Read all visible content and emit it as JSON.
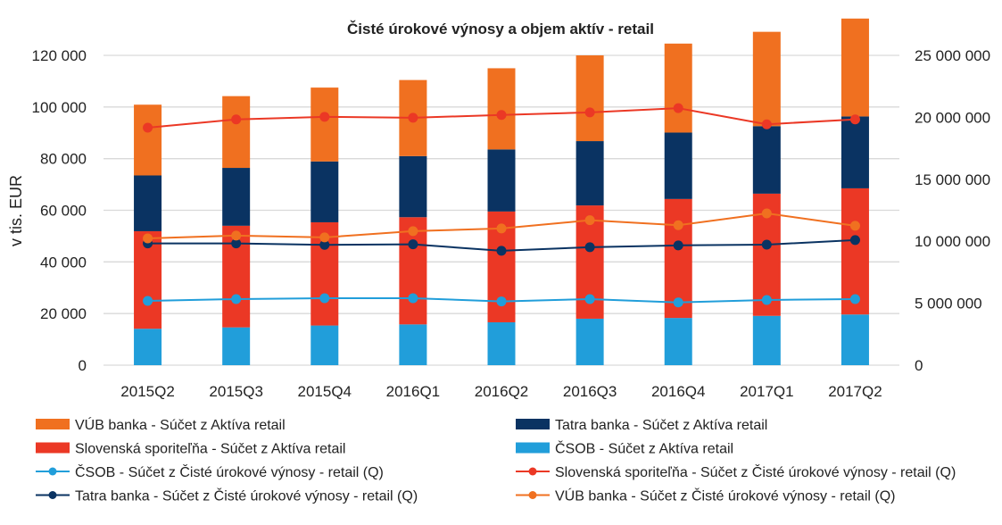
{
  "chart_data": {
    "type": "bar",
    "title": "Čisté úrokové výnosy a objem aktív - retail",
    "ylabel": "v tis. EUR",
    "xlabel": "",
    "categories": [
      "2015Q2",
      "2015Q3",
      "2015Q4",
      "2016Q1",
      "2016Q2",
      "2016Q3",
      "2016Q4",
      "2017Q1",
      "2017Q2"
    ],
    "y_left": {
      "min": 0,
      "max": 120000,
      "step": 20000,
      "ticks": [
        "0",
        "20 000",
        "40 000",
        "60 000",
        "80 000",
        "100 000",
        "120 000"
      ]
    },
    "y_right": {
      "min": 0,
      "max": 25000000,
      "step": 5000000,
      "ticks": [
        "0",
        "5 000 000",
        "10 000 000",
        "15 000 000",
        "20 000 000",
        "25 000 000"
      ]
    },
    "grid": true,
    "legend_position": "bottom",
    "bar_series": [
      {
        "name": "ČSOB - Súčet z Aktíva retail",
        "color": "#219EDA",
        "axis": "right",
        "values": [
          2940000,
          3050000,
          3200000,
          3290000,
          3460000,
          3750000,
          3810000,
          3980000,
          4090000
        ]
      },
      {
        "name": "Slovenská sporiteľňa - Súčet z Aktíva retail",
        "color": "#EB3825",
        "axis": "right",
        "values": [
          7870000,
          8200000,
          8330000,
          8650000,
          8940000,
          9140000,
          9600000,
          9860000,
          10180000
        ]
      },
      {
        "name": "Tatra banka - Súčet z Aktíva retail",
        "color": "#0A3362",
        "axis": "right",
        "values": [
          4500000,
          4670000,
          4910000,
          4930000,
          5010000,
          5190000,
          5360000,
          5450000,
          5800000
        ]
      },
      {
        "name": "VÚB banka - Súčet z Aktíva retail",
        "color": "#F07020",
        "axis": "right",
        "values": [
          5710000,
          5790000,
          5960000,
          6140000,
          6550000,
          6920000,
          7180000,
          7610000,
          7900000
        ]
      }
    ],
    "line_series": [
      {
        "name": "ČSOB - Súčet z Čisté úrokové výnosy - retail (Q)",
        "color": "#219EDA",
        "axis": "left",
        "values": [
          24900,
          25600,
          25950,
          25950,
          24700,
          25600,
          24300,
          25250,
          25600
        ]
      },
      {
        "name": "Slovenská sporiteľňa - Súčet z Čisté úrokové výnosy - retail (Q)",
        "color": "#EB3825",
        "axis": "left",
        "values": [
          92000,
          95200,
          96200,
          95850,
          96900,
          97900,
          99550,
          93300,
          95200
        ]
      },
      {
        "name": "Tatra banka - Súčet z Čisté úrokové výnosy - retail (Q)",
        "color": "#0A3362",
        "axis": "left",
        "values": [
          47150,
          47150,
          46600,
          46800,
          44300,
          45700,
          46400,
          46700,
          48450
        ]
      },
      {
        "name": "VÚB banka - Súčet z Čisté úrokové výnosy - retail (Q)",
        "color": "#F07020",
        "axis": "left",
        "values": [
          49100,
          50200,
          49500,
          51900,
          52950,
          56150,
          54200,
          58800,
          54000
        ]
      }
    ],
    "legend_order": [
      {
        "kind": "bar",
        "index": 3
      },
      {
        "kind": "bar",
        "index": 2
      },
      {
        "kind": "bar",
        "index": 1
      },
      {
        "kind": "bar",
        "index": 0
      },
      {
        "kind": "line",
        "index": 0
      },
      {
        "kind": "line",
        "index": 1
      },
      {
        "kind": "line",
        "index": 2
      },
      {
        "kind": "line",
        "index": 3
      }
    ]
  }
}
